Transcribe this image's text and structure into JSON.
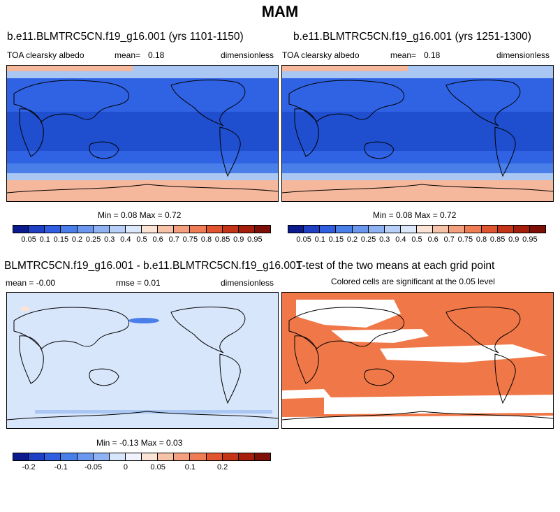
{
  "page": {
    "title": "MAM"
  },
  "colors": {
    "ocean_tropics": "#1f4fcf",
    "ocean_mid": "#2f63e4",
    "ocean_band": "#4a7ee9",
    "sea_ice_light": "#aac6f2",
    "peach": "#f6b89c",
    "diff_bg": "#d8e6fb",
    "ttest_fill": "#f07848",
    "coast": "#000000"
  },
  "panels": {
    "top_left": {
      "title": "b.e11.BLMTRC5CN.f19_g16.001 (yrs 1101-1150)",
      "variable": "TOA clearsky albedo",
      "mean_label": "mean=",
      "mean_value": "0.18",
      "units": "dimensionless",
      "minmax": "Min =   0.08 Max =   0.72"
    },
    "top_right": {
      "title": "b.e11.BLMTRC5CN.f19_g16.001 (yrs 1251-1300)",
      "variable": "TOA clearsky albedo",
      "mean_label": "mean=",
      "mean_value": "0.18",
      "units": "dimensionless",
      "minmax": "Min =   0.08 Max =   0.72"
    },
    "bottom_left": {
      "title": "BLMTRC5CN.f19_g16.001 - b.e11.BLMTRC5CN.f19_g16.001",
      "mean_text": "mean = -0.00",
      "rmse_text": "rmse =   0.01",
      "units": "dimensionless",
      "minmax": "Min =  -0.13 Max =   0.03"
    },
    "bottom_right": {
      "title": "T-test of the two means at each grid point",
      "subtitle": "Colored cells are significant at the 0.05 level"
    }
  },
  "chart_data": [
    {
      "type": "heatmap",
      "title": "b.e11.BLMTRC5CN.f19_g16.001 (yrs 1101-1150)",
      "variable": "TOA clearsky albedo",
      "units": "dimensionless",
      "mean": 0.18,
      "min": 0.08,
      "max": 0.72,
      "colorbar": {
        "levels": [
          "0.05",
          "0.1",
          "0.15",
          "0.2",
          "0.25",
          "0.3",
          "0.4",
          "0.5",
          "0.6",
          "0.7",
          "0.75",
          "0.8",
          "0.85",
          "0.9",
          "0.95"
        ],
        "colors": [
          "#0b1a8c",
          "#1f3fc4",
          "#2f5ee0",
          "#4a7ee9",
          "#6b98ee",
          "#8fb2f3",
          "#b8cff7",
          "#dce8fb",
          "#fbe4d6",
          "#f7c3a8",
          "#f4a07e",
          "#ee7c55",
          "#e0542f",
          "#c43518",
          "#a51e0c",
          "#7d0f07"
        ]
      }
    },
    {
      "type": "heatmap",
      "title": "b.e11.BLMTRC5CN.f19_g16.001 (yrs 1251-1300)",
      "variable": "TOA clearsky albedo",
      "units": "dimensionless",
      "mean": 0.18,
      "min": 0.08,
      "max": 0.72,
      "colorbar": {
        "levels": [
          "0.05",
          "0.1",
          "0.15",
          "0.2",
          "0.25",
          "0.3",
          "0.4",
          "0.5",
          "0.6",
          "0.7",
          "0.75",
          "0.8",
          "0.85",
          "0.9",
          "0.95"
        ],
        "colors": [
          "#0b1a8c",
          "#1f3fc4",
          "#2f5ee0",
          "#4a7ee9",
          "#6b98ee",
          "#8fb2f3",
          "#b8cff7",
          "#dce8fb",
          "#fbe4d6",
          "#f7c3a8",
          "#f4a07e",
          "#ee7c55",
          "#e0542f",
          "#c43518",
          "#a51e0c",
          "#7d0f07"
        ]
      }
    },
    {
      "type": "heatmap",
      "title": "BLMTRC5CN.f19_g16.001 - b.e11.BLMTRC5CN.f19_g16.001",
      "units": "dimensionless",
      "mean": -0.0,
      "rmse": 0.01,
      "min": -0.13,
      "max": 0.03,
      "colorbar": {
        "levels": [
          "-0.2",
          "-0.1",
          "-0.05",
          "0",
          "0.05",
          "0.1",
          "0.2"
        ],
        "tick_positions": [
          1,
          3,
          5,
          7,
          9,
          11,
          13
        ],
        "colors": [
          "#0b1a8c",
          "#1f3fc4",
          "#2f5ee0",
          "#4a7ee9",
          "#6b98ee",
          "#8fb2f3",
          "#d8e6fb",
          "#eef3fd",
          "#fbe4d6",
          "#f7c3a8",
          "#f4a07e",
          "#ee7c55",
          "#e0542f",
          "#c43518",
          "#a51e0c",
          "#7d0f07"
        ]
      }
    },
    {
      "type": "heatmap",
      "title": "T-test of the two means at each grid point",
      "subtitle": "Colored cells are significant at the 0.05 level",
      "significance_level": 0.05
    }
  ]
}
